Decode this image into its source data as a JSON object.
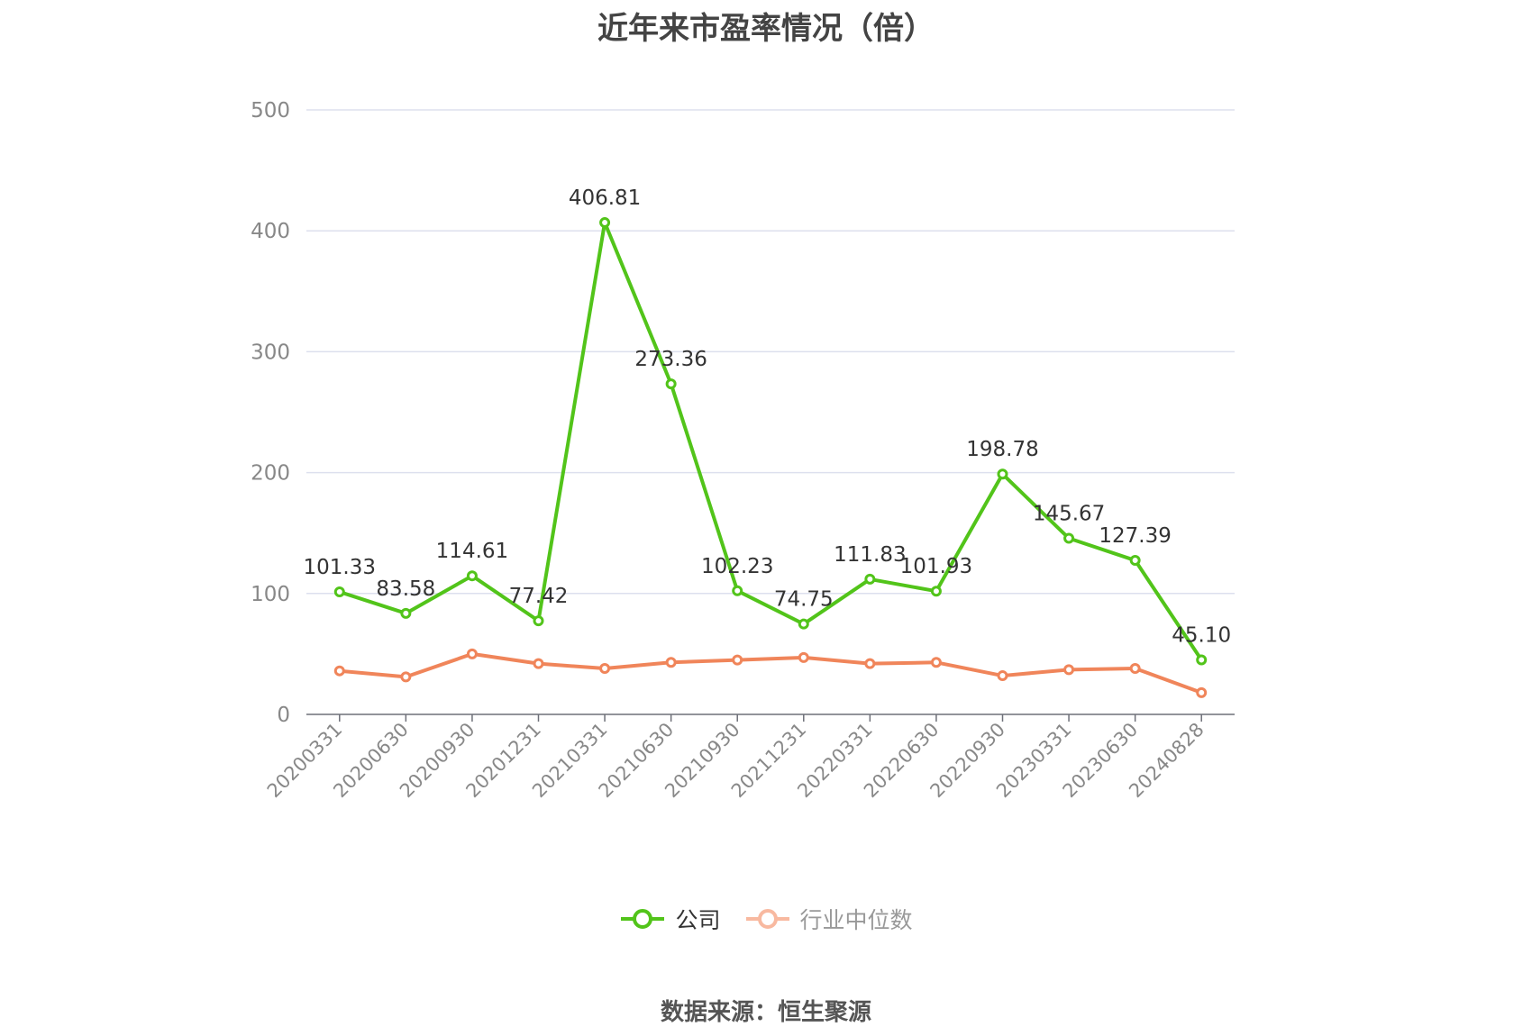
{
  "title": "近年来市盈率情况（倍）",
  "source_text": "数据来源：恒生聚源",
  "chart_data": {
    "type": "line",
    "categories": [
      "20200331",
      "20200630",
      "20200930",
      "20201231",
      "20210331",
      "20210630",
      "20210930",
      "20211231",
      "20220331",
      "20220630",
      "20220930",
      "20230331",
      "20230630",
      "20240828"
    ],
    "ylim": [
      0,
      500
    ],
    "yticks": [
      0,
      100,
      200,
      300,
      400,
      500
    ],
    "grid": true,
    "legend_position": "bottom",
    "series": [
      {
        "name": "公司",
        "color": "#52c41a",
        "values": [
          101.33,
          83.58,
          114.61,
          77.42,
          406.81,
          273.36,
          102.23,
          74.75,
          111.83,
          101.93,
          198.78,
          145.67,
          127.39,
          45.1
        ],
        "labels": [
          "101.33",
          "83.58",
          "114.61",
          "77.42",
          "406.81",
          "273.36",
          "102.23",
          "74.75",
          "111.83",
          "101.93",
          "198.78",
          "145.67",
          "127.39",
          "45.10"
        ]
      },
      {
        "name": "行业中位数",
        "color": "#f0855a",
        "values": [
          36,
          31,
          50,
          42,
          38,
          43,
          45,
          47,
          42,
          43,
          32,
          37,
          38,
          18
        ]
      }
    ]
  }
}
